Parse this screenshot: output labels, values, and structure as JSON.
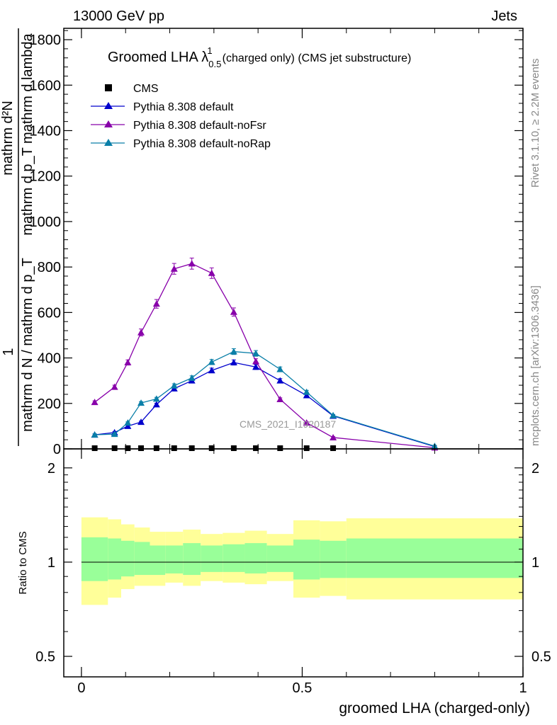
{
  "header": {
    "energy": "13000 GeV pp",
    "category": "Jets"
  },
  "side": {
    "rivet": "Rivet 3.1.10, ≥ 2.2M events",
    "mcplots": "mcplots.cern.ch [arXiv:1306.3436]"
  },
  "watermark": "CMS_2021_I1920187",
  "chart_data": [
    {
      "type": "line",
      "title": "Groomed LHA λ",
      "title_sup": "1",
      "title_sub": "0.5",
      "title_suffix": "(charged only) (CMS jet substructure)",
      "xlabel": "groomed LHA (charged-only)",
      "ylabel_top": "1",
      "ylabel_frac_num": "mathrm d²N",
      "ylabel_frac_den": "mathrm d p_T mathrm d lambda",
      "ylabel_frac2_den": "mathrm d N / mathrm d p_T",
      "xlim": [
        -0.04,
        1.0
      ],
      "ylim": [
        0,
        1850
      ],
      "yticks": [
        0,
        200,
        400,
        600,
        800,
        1000,
        1200,
        1400,
        1600,
        1800
      ],
      "ytick_labels": [
        "0",
        "200",
        "400",
        "600",
        "800",
        "1000",
        "1200",
        "1400",
        "1600",
        "1800"
      ],
      "legend_placement": "top-left",
      "series": [
        {
          "name": "CMS",
          "color": "#000000",
          "marker": "square",
          "x": [
            0.03,
            0.075,
            0.105,
            0.135,
            0.17,
            0.21,
            0.25,
            0.295,
            0.345,
            0.395,
            0.45,
            0.51,
            0.57
          ],
          "values": [
            3,
            3,
            3,
            3,
            3,
            3,
            3,
            3,
            3,
            3,
            3,
            3,
            3
          ]
        },
        {
          "name": "Pythia 8.308 default",
          "color": "#0000cc",
          "marker": "triangle",
          "x": [
            0.03,
            0.075,
            0.105,
            0.135,
            0.17,
            0.21,
            0.25,
            0.295,
            0.345,
            0.395,
            0.45,
            0.51,
            0.57,
            0.8
          ],
          "values": [
            62,
            72,
            100,
            118,
            195,
            265,
            300,
            345,
            380,
            360,
            300,
            235,
            145,
            10
          ]
        },
        {
          "name": "Pythia 8.308 default-noFsr",
          "color": "#8800aa",
          "marker": "triangle",
          "x": [
            0.03,
            0.075,
            0.105,
            0.135,
            0.17,
            0.21,
            0.25,
            0.295,
            0.345,
            0.395,
            0.45,
            0.51,
            0.57,
            0.8
          ],
          "values": [
            205,
            272,
            380,
            512,
            638,
            792,
            815,
            773,
            602,
            385,
            218,
            115,
            50,
            5
          ]
        },
        {
          "name": "Pythia 8.308 default-noRap",
          "color": "#0a7fa8",
          "marker": "triangle",
          "x": [
            0.03,
            0.075,
            0.105,
            0.135,
            0.17,
            0.21,
            0.25,
            0.295,
            0.345,
            0.395,
            0.45,
            0.51,
            0.57,
            0.8
          ],
          "values": [
            62,
            65,
            115,
            202,
            220,
            278,
            312,
            382,
            428,
            420,
            350,
            250,
            147,
            12
          ]
        }
      ]
    },
    {
      "type": "area",
      "ylabel": "Ratio to CMS",
      "xlabel": "groomed LHA (charged-only)",
      "xlim": [
        -0.04,
        1.0
      ],
      "ylim": [
        0.43,
        2.3
      ],
      "log_scale": true,
      "yticks": [
        0.5,
        1,
        2
      ],
      "ytick_labels": [
        "0.5",
        "1",
        "2"
      ],
      "xticks": [
        0,
        0.5,
        1
      ],
      "xtick_labels": [
        "0",
        "0.5",
        "1"
      ],
      "reference_line": 1,
      "band_colors": {
        "outer": "#ffff99",
        "inner": "#99ff99"
      },
      "bins": [
        {
          "x0": 0.0,
          "x1": 0.06,
          "outer_low": 0.73,
          "outer_high": 1.39,
          "inner_low": 0.87,
          "inner_high": 1.2
        },
        {
          "x0": 0.06,
          "x1": 0.09,
          "outer_low": 0.77,
          "outer_high": 1.37,
          "inner_low": 0.88,
          "inner_high": 1.19
        },
        {
          "x0": 0.09,
          "x1": 0.12,
          "outer_low": 0.82,
          "outer_high": 1.32,
          "inner_low": 0.9,
          "inner_high": 1.17
        },
        {
          "x0": 0.12,
          "x1": 0.155,
          "outer_low": 0.84,
          "outer_high": 1.29,
          "inner_low": 0.91,
          "inner_high": 1.16
        },
        {
          "x0": 0.155,
          "x1": 0.19,
          "outer_low": 0.84,
          "outer_high": 1.25,
          "inner_low": 0.91,
          "inner_high": 1.13
        },
        {
          "x0": 0.19,
          "x1": 0.23,
          "outer_low": 0.86,
          "outer_high": 1.25,
          "inner_low": 0.92,
          "inner_high": 1.13
        },
        {
          "x0": 0.23,
          "x1": 0.27,
          "outer_low": 0.84,
          "outer_high": 1.27,
          "inner_low": 0.91,
          "inner_high": 1.15
        },
        {
          "x0": 0.27,
          "x1": 0.32,
          "outer_low": 0.87,
          "outer_high": 1.23,
          "inner_low": 0.93,
          "inner_high": 1.13
        },
        {
          "x0": 0.32,
          "x1": 0.37,
          "outer_low": 0.86,
          "outer_high": 1.24,
          "inner_low": 0.93,
          "inner_high": 1.14
        },
        {
          "x0": 0.37,
          "x1": 0.42,
          "outer_low": 0.85,
          "outer_high": 1.26,
          "inner_low": 0.92,
          "inner_high": 1.15
        },
        {
          "x0": 0.42,
          "x1": 0.48,
          "outer_low": 0.87,
          "outer_high": 1.23,
          "inner_low": 0.93,
          "inner_high": 1.13
        },
        {
          "x0": 0.48,
          "x1": 0.54,
          "outer_low": 0.77,
          "outer_high": 1.36,
          "inner_low": 0.88,
          "inner_high": 1.18
        },
        {
          "x0": 0.54,
          "x1": 0.6,
          "outer_low": 0.78,
          "outer_high": 1.35,
          "inner_low": 0.89,
          "inner_high": 1.17
        },
        {
          "x0": 0.6,
          "x1": 1.0,
          "outer_low": 0.76,
          "outer_high": 1.38,
          "inner_low": 0.89,
          "inner_high": 1.19
        }
      ]
    }
  ]
}
